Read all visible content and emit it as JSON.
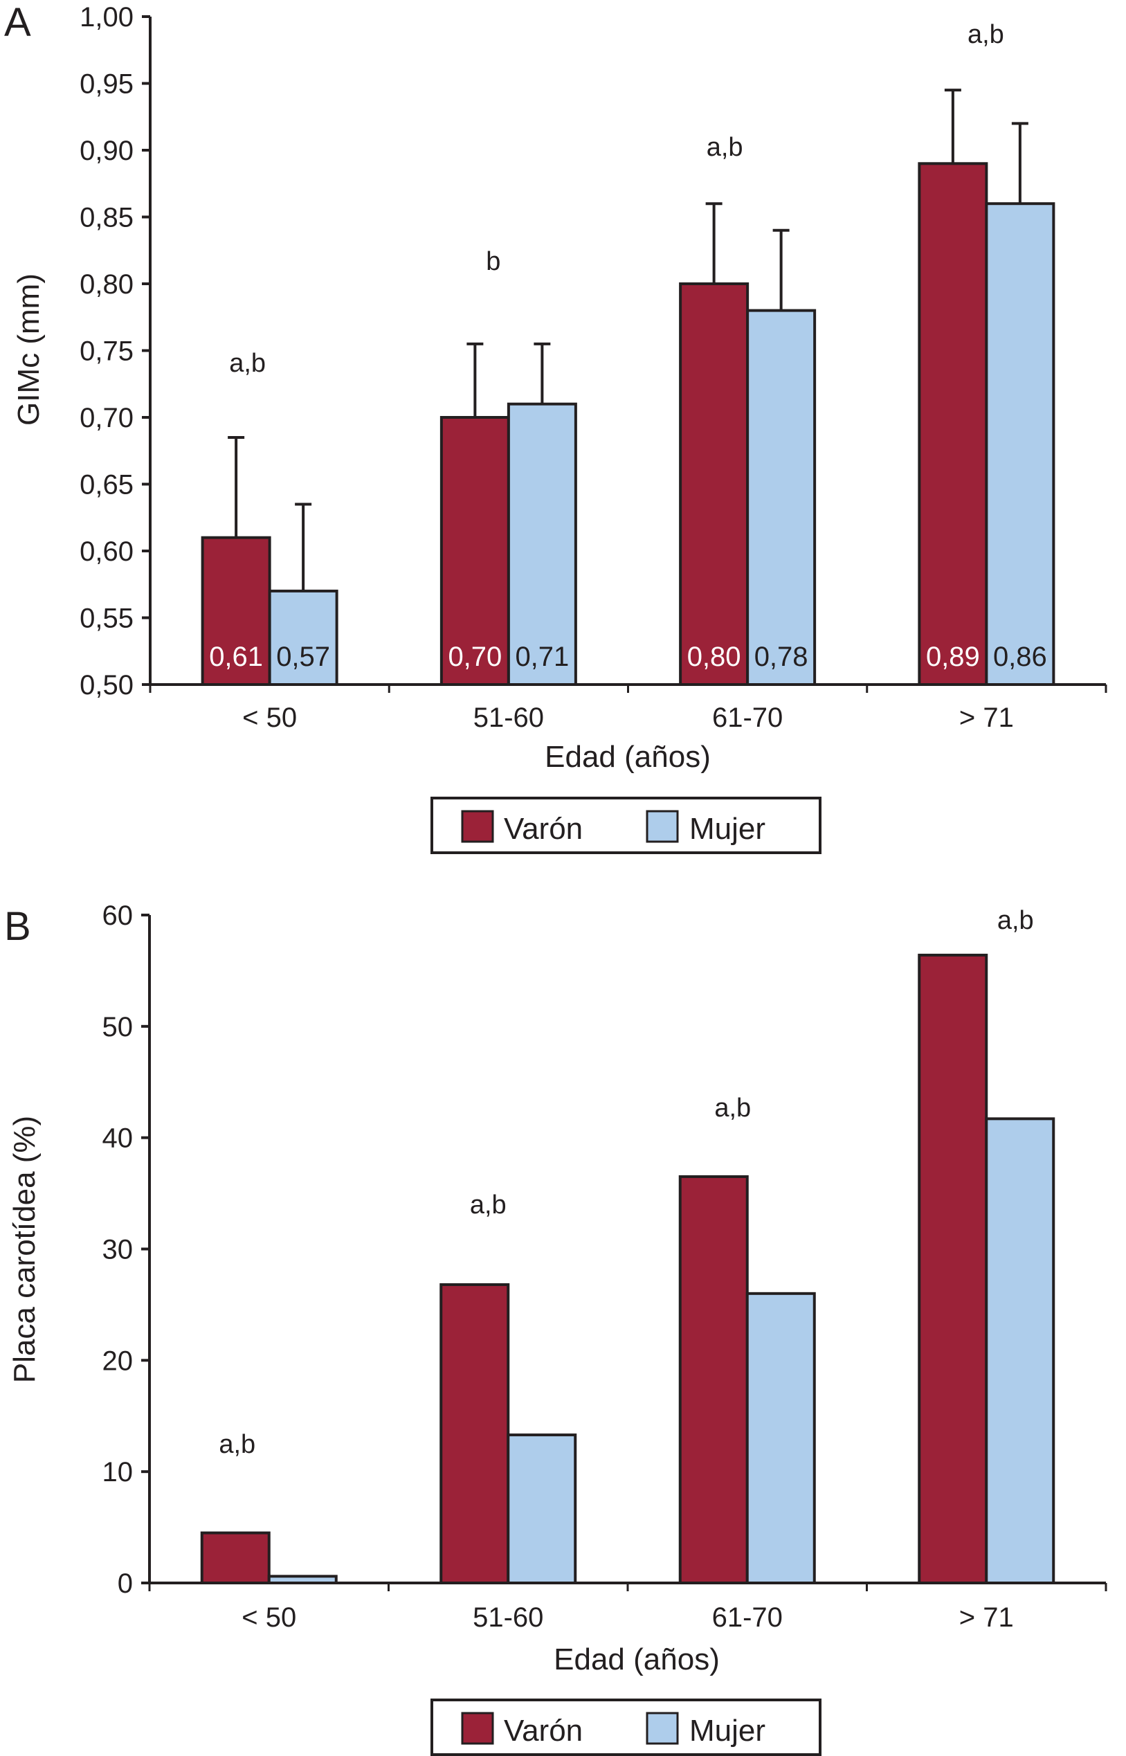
{
  "colors": {
    "varon": "#9b2238",
    "mujer": "#aecdeb",
    "stroke": "#231f20",
    "value_label_varon": "#ffffff",
    "value_label_mujer": "#231f20"
  },
  "chart_data": [
    {
      "panel": "A",
      "type": "bar",
      "title": "",
      "xlabel": "Edad (años)",
      "ylabel": "GIMc (mm)",
      "ylim": [
        0.5,
        1.0
      ],
      "yticks": [
        "0,50",
        "0,55",
        "0,60",
        "0,65",
        "0,70",
        "0,75",
        "0,80",
        "0,85",
        "0,90",
        "0,95",
        "1,00"
      ],
      "ytick_values": [
        0.5,
        0.55,
        0.6,
        0.65,
        0.7,
        0.75,
        0.8,
        0.85,
        0.9,
        0.95,
        1.0
      ],
      "categories": [
        "< 50",
        "51-60",
        "61-70",
        "> 71"
      ],
      "series": [
        {
          "name": "Varón",
          "values": [
            0.61,
            0.7,
            0.8,
            0.89
          ],
          "value_labels": [
            "0,61",
            "0,70",
            "0,80",
            "0,89"
          ],
          "error_upper": [
            0.685,
            0.755,
            0.86,
            0.945
          ]
        },
        {
          "name": "Mujer",
          "values": [
            0.57,
            0.71,
            0.78,
            0.86
          ],
          "value_labels": [
            "0,57",
            "0,71",
            "0,78",
            "0,86"
          ],
          "error_upper": [
            0.635,
            0.755,
            0.84,
            0.92
          ]
        }
      ],
      "annotations": [
        "a,b",
        "b",
        "a,b",
        "a,b"
      ],
      "legend": {
        "entries": [
          "Varón",
          "Mujer"
        ],
        "placement": "bottom-center"
      },
      "grid": false
    },
    {
      "panel": "B",
      "type": "bar",
      "title": "",
      "xlabel": "Edad (años)",
      "ylabel": "Placa carotídea (%)",
      "ylim": [
        0,
        60
      ],
      "yticks": [
        "0",
        "10",
        "20",
        "30",
        "40",
        "50",
        "60"
      ],
      "ytick_values": [
        0,
        10,
        20,
        30,
        40,
        50,
        60
      ],
      "categories": [
        "< 50",
        "51-60",
        "61-70",
        "> 71"
      ],
      "series": [
        {
          "name": "Varón",
          "values": [
            4.5,
            26.8,
            36.5,
            56.4
          ]
        },
        {
          "name": "Mujer",
          "values": [
            0.6,
            13.3,
            26.0,
            41.7
          ]
        }
      ],
      "annotations": [
        "a,b",
        "a,b",
        "a,b",
        "a,b"
      ],
      "legend": {
        "entries": [
          "Varón",
          "Mujer"
        ],
        "placement": "bottom-center"
      },
      "grid": false
    }
  ]
}
